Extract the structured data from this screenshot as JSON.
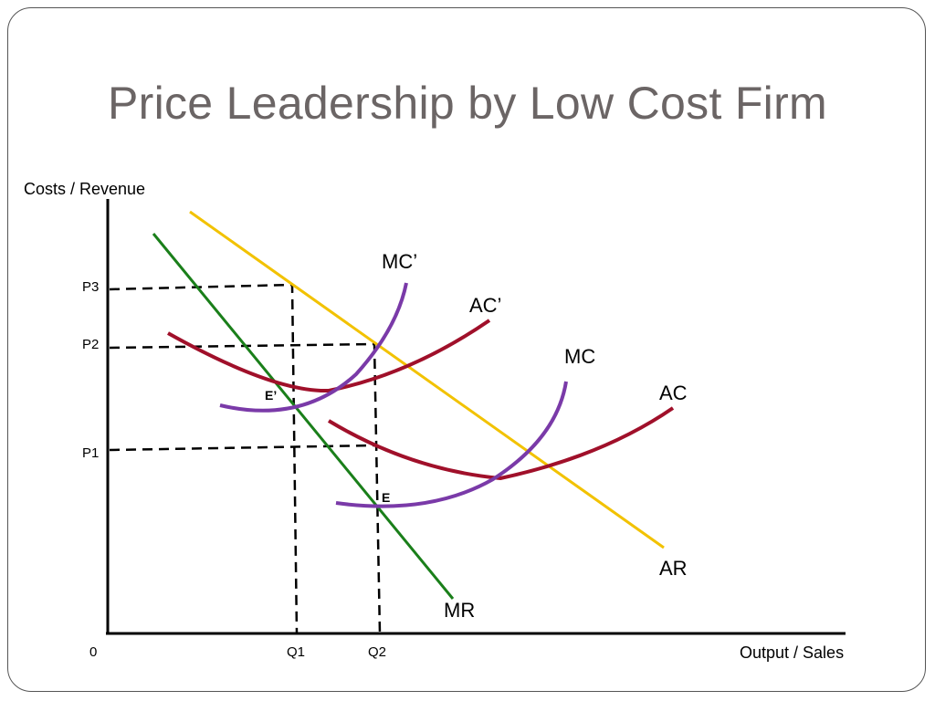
{
  "slide": {
    "title": "Price Leadership by Low Cost Firm"
  },
  "axes": {
    "y_label": "Costs / Revenue",
    "x_label": "Output / Sales",
    "origin": "0"
  },
  "price_levels": [
    "P3",
    "P2",
    "P1"
  ],
  "quantity_levels": [
    "Q1",
    "Q2"
  ],
  "curves": {
    "mc_prime": "MC’",
    "ac_prime": "AC’",
    "mc": "MC",
    "ac": "AC",
    "ar": "AR",
    "mr": "MR"
  },
  "points": {
    "e_prime": "E’",
    "e": "E"
  },
  "colors": {
    "title": "#6b6565",
    "mr": "#1a7f1a",
    "ar": "#f2c200",
    "ac": "#a0102a",
    "mc": "#7a3aa8",
    "axes": "#000000"
  }
}
